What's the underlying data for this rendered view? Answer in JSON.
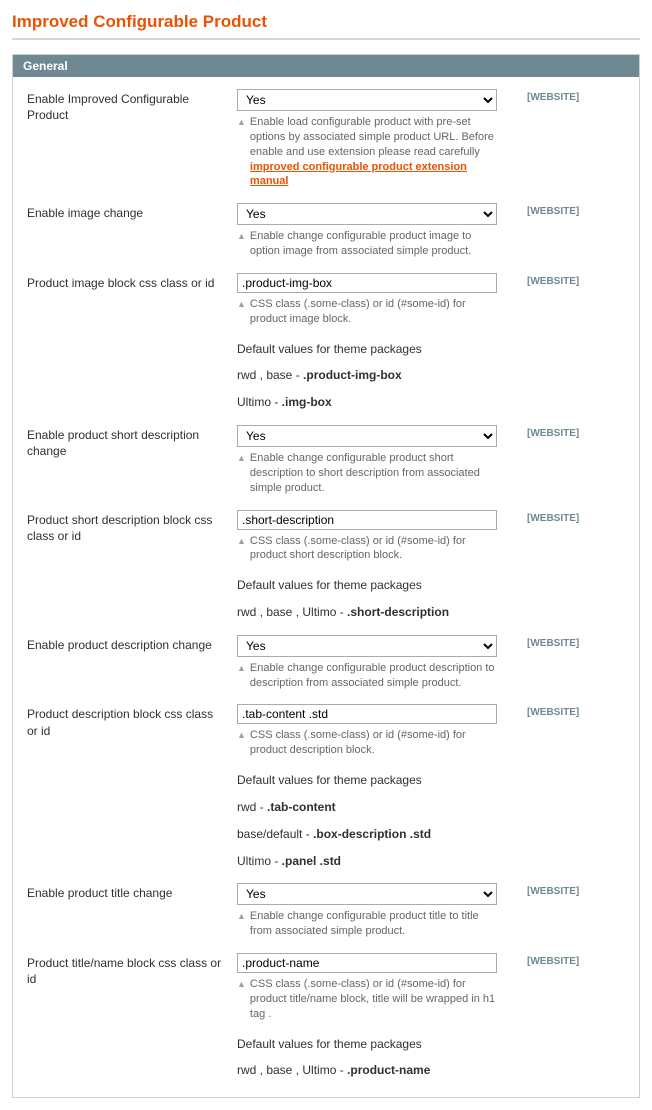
{
  "page": {
    "title": "Improved Configurable Product"
  },
  "section": {
    "title": "General"
  },
  "scope_label": "[WEBSITE]",
  "options": {
    "yes": "Yes"
  },
  "manual_link": "improved configurable product extension manual",
  "defaults_heading": "Default values for theme packages",
  "fields": {
    "enable_icp": {
      "label": "Enable Improved Configurable Product",
      "value": "Yes",
      "hint_pre": "Enable load configurable product with pre-set options by associated simple product URL. Before enable and use extension please read carefully "
    },
    "enable_image": {
      "label": "Enable image change",
      "value": "Yes",
      "hint": "Enable change configurable product image to option image from associated simple product."
    },
    "image_block": {
      "label": "Product image block css class or id",
      "value": ".product-img-box",
      "hint": "CSS class (.some-class) or id (#some-id) for product image block.",
      "d1_pre": "rwd , base - ",
      "d1_b": ".product-img-box",
      "d2_pre": "Ultimo - ",
      "d2_b": ".img-box"
    },
    "enable_shortdesc": {
      "label": "Enable product short description change",
      "value": "Yes",
      "hint": "Enable change configurable product short description to short description from associated simple product."
    },
    "shortdesc_block": {
      "label": "Product short description block css class or id",
      "value": ".short-description",
      "hint": "CSS class (.some-class) or id (#some-id) for product short description block.",
      "d1_pre": "rwd , base , Ultimo - ",
      "d1_b": ".short-description"
    },
    "enable_desc": {
      "label": "Enable product description change",
      "value": "Yes",
      "hint": "Enable change configurable product description to description from associated simple product."
    },
    "desc_block": {
      "label": "Product description block css class or id",
      "value": ".tab-content .std",
      "hint": "CSS class (.some-class) or id (#some-id) for product description block.",
      "d1_pre": "rwd - ",
      "d1_b": ".tab-content",
      "d2_pre": "base/default - ",
      "d2_b": ".box-description .std",
      "d3_pre": "Ultimo - ",
      "d3_b": ".panel .std"
    },
    "enable_title": {
      "label": "Enable product title change",
      "value": "Yes",
      "hint": "Enable change configurable product title to title from associated simple product."
    },
    "title_block": {
      "label": "Product title/name block css class or id",
      "value": ".product-name",
      "hint": "CSS class (.some-class) or id (#some-id) for product title/name block, title will be wrapped in h1 tag .",
      "d1_pre": "rwd , base , Ultimo - ",
      "d1_b": ".product-name"
    }
  }
}
